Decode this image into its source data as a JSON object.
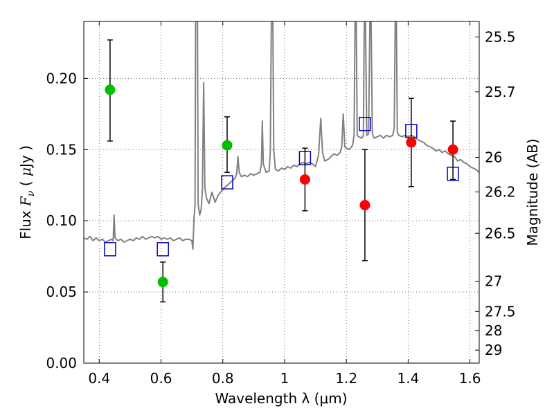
{
  "chart_data": {
    "type": "scatter",
    "xlabel": "Wavelength  λ (μm)",
    "ylabel": "Flux  F_ν  ( μJy )",
    "ylabel_right": "Magnitude (AB)",
    "xlim": [
      0.35,
      1.63
    ],
    "ylim": [
      0.0,
      0.24
    ],
    "grid": true,
    "x_ticks": [
      0.4,
      0.6,
      0.8,
      1.0,
      1.2,
      1.4,
      1.6
    ],
    "x_tick_labels": [
      "0.4",
      "0.6",
      "0.8",
      "1",
      "1.2",
      "1.4",
      "1.6"
    ],
    "y_ticks": [
      0.0,
      0.05,
      0.1,
      0.15,
      0.2
    ],
    "y_tick_labels": [
      "0.00",
      "0.05",
      "0.10",
      "0.15",
      "0.20"
    ],
    "magnitude_ticks": [
      25.5,
      25.7,
      26,
      26.2,
      26.5,
      27,
      27.5,
      28,
      29
    ],
    "magnitude_tick_labels": [
      "25.5",
      "25.7",
      "26",
      "26.2",
      "26.5",
      "27",
      "27.5",
      "28",
      "29"
    ],
    "colors": {
      "sed": "#808080",
      "green": "#00bf00",
      "red": "#ff0000",
      "model": "#0000cc",
      "errorbar": "#000000",
      "grid": "#555555"
    },
    "series": [
      {
        "marker": "circle",
        "color": "#00bf00",
        "points": [
          {
            "x": 0.435,
            "y": 0.192,
            "err": [
              0.156,
              0.227
            ]
          },
          {
            "x": 0.606,
            "y": 0.057,
            "err": [
              0.043,
              0.071
            ]
          },
          {
            "x": 0.814,
            "y": 0.153,
            "err": [
              0.134,
              0.173
            ]
          }
        ]
      },
      {
        "marker": "circle",
        "color": "#ff0000",
        "points": [
          {
            "x": 1.066,
            "y": 0.129,
            "err": [
              0.107,
              0.151
            ]
          },
          {
            "x": 1.26,
            "y": 0.111,
            "err": [
              0.072,
              0.15
            ]
          },
          {
            "x": 1.41,
            "y": 0.155,
            "err": [
              0.124,
              0.186
            ]
          },
          {
            "x": 1.545,
            "y": 0.15,
            "err": [
              0.129,
              0.17
            ]
          }
        ]
      },
      {
        "marker": "open-square",
        "color": "#0000cc",
        "points": [
          {
            "x": 0.435,
            "y": 0.08
          },
          {
            "x": 0.606,
            "y": 0.08
          },
          {
            "x": 0.814,
            "y": 0.127
          },
          {
            "x": 1.066,
            "y": 0.144
          },
          {
            "x": 1.26,
            "y": 0.168
          },
          {
            "x": 1.41,
            "y": 0.163
          },
          {
            "x": 1.545,
            "y": 0.133
          }
        ]
      },
      {
        "marker": "line",
        "color": "#808080",
        "points": [
          [
            0.35,
            0.088
          ],
          [
            0.36,
            0.087
          ],
          [
            0.37,
            0.089
          ],
          [
            0.38,
            0.086
          ],
          [
            0.39,
            0.088
          ],
          [
            0.4,
            0.086
          ],
          [
            0.41,
            0.087
          ],
          [
            0.42,
            0.085
          ],
          [
            0.43,
            0.086
          ],
          [
            0.44,
            0.087
          ],
          [
            0.445,
            0.086
          ],
          [
            0.448,
            0.104
          ],
          [
            0.451,
            0.088
          ],
          [
            0.46,
            0.086
          ],
          [
            0.47,
            0.087
          ],
          [
            0.48,
            0.085
          ],
          [
            0.49,
            0.086
          ],
          [
            0.5,
            0.087
          ],
          [
            0.51,
            0.086
          ],
          [
            0.52,
            0.088
          ],
          [
            0.53,
            0.087
          ],
          [
            0.54,
            0.089
          ],
          [
            0.55,
            0.087
          ],
          [
            0.56,
            0.088
          ],
          [
            0.57,
            0.089
          ],
          [
            0.58,
            0.088
          ],
          [
            0.59,
            0.089
          ],
          [
            0.6,
            0.087
          ],
          [
            0.61,
            0.088
          ],
          [
            0.62,
            0.087
          ],
          [
            0.63,
            0.088
          ],
          [
            0.64,
            0.086
          ],
          [
            0.65,
            0.087
          ],
          [
            0.66,
            0.088
          ],
          [
            0.67,
            0.086
          ],
          [
            0.68,
            0.087
          ],
          [
            0.69,
            0.087
          ],
          [
            0.7,
            0.086
          ],
          [
            0.703,
            0.08
          ],
          [
            0.707,
            0.103
          ],
          [
            0.71,
            0.11
          ],
          [
            0.712,
            0.24
          ],
          [
            0.718,
            0.24
          ],
          [
            0.72,
            0.112
          ],
          [
            0.725,
            0.104
          ],
          [
            0.73,
            0.108
          ],
          [
            0.734,
            0.122
          ],
          [
            0.738,
            0.197
          ],
          [
            0.742,
            0.123
          ],
          [
            0.747,
            0.116
          ],
          [
            0.755,
            0.112
          ],
          [
            0.765,
            0.12
          ],
          [
            0.775,
            0.113
          ],
          [
            0.785,
            0.118
          ],
          [
            0.8,
            0.122
          ],
          [
            0.81,
            0.124
          ],
          [
            0.82,
            0.126
          ],
          [
            0.83,
            0.128
          ],
          [
            0.84,
            0.13
          ],
          [
            0.845,
            0.133
          ],
          [
            0.849,
            0.145
          ],
          [
            0.853,
            0.134
          ],
          [
            0.86,
            0.131
          ],
          [
            0.87,
            0.132
          ],
          [
            0.88,
            0.131
          ],
          [
            0.89,
            0.133
          ],
          [
            0.9,
            0.132
          ],
          [
            0.91,
            0.133
          ],
          [
            0.92,
            0.134
          ],
          [
            0.925,
            0.14
          ],
          [
            0.928,
            0.17
          ],
          [
            0.931,
            0.14
          ],
          [
            0.94,
            0.134
          ],
          [
            0.95,
            0.135
          ],
          [
            0.954,
            0.15
          ],
          [
            0.957,
            0.24
          ],
          [
            0.962,
            0.24
          ],
          [
            0.965,
            0.15
          ],
          [
            0.97,
            0.136
          ],
          [
            0.98,
            0.135
          ],
          [
            0.99,
            0.137
          ],
          [
            1.0,
            0.136
          ],
          [
            1.01,
            0.138
          ],
          [
            1.02,
            0.137
          ],
          [
            1.03,
            0.139
          ],
          [
            1.04,
            0.138
          ],
          [
            1.05,
            0.14
          ],
          [
            1.06,
            0.141
          ],
          [
            1.07,
            0.14
          ],
          [
            1.08,
            0.141
          ],
          [
            1.09,
            0.14
          ],
          [
            1.1,
            0.138
          ],
          [
            1.11,
            0.146
          ],
          [
            1.117,
            0.172
          ],
          [
            1.123,
            0.148
          ],
          [
            1.13,
            0.142
          ],
          [
            1.14,
            0.143
          ],
          [
            1.15,
            0.145
          ],
          [
            1.16,
            0.147
          ],
          [
            1.17,
            0.146
          ],
          [
            1.18,
            0.148
          ],
          [
            1.185,
            0.152
          ],
          [
            1.19,
            0.175
          ],
          [
            1.195,
            0.152
          ],
          [
            1.2,
            0.151
          ],
          [
            1.21,
            0.15
          ],
          [
            1.22,
            0.153
          ],
          [
            1.225,
            0.16
          ],
          [
            1.228,
            0.24
          ],
          [
            1.232,
            0.24
          ],
          [
            1.235,
            0.16
          ],
          [
            1.24,
            0.159
          ],
          [
            1.25,
            0.158
          ],
          [
            1.255,
            0.16
          ],
          [
            1.258,
            0.24
          ],
          [
            1.262,
            0.24
          ],
          [
            1.266,
            0.16
          ],
          [
            1.272,
            0.161
          ],
          [
            1.276,
            0.24
          ],
          [
            1.28,
            0.24
          ],
          [
            1.284,
            0.161
          ],
          [
            1.29,
            0.158
          ],
          [
            1.3,
            0.159
          ],
          [
            1.31,
            0.16
          ],
          [
            1.32,
            0.158
          ],
          [
            1.33,
            0.16
          ],
          [
            1.34,
            0.159
          ],
          [
            1.35,
            0.16
          ],
          [
            1.355,
            0.165
          ],
          [
            1.358,
            0.24
          ],
          [
            1.362,
            0.24
          ],
          [
            1.365,
            0.162
          ],
          [
            1.37,
            0.16
          ],
          [
            1.38,
            0.159
          ],
          [
            1.39,
            0.16
          ],
          [
            1.4,
            0.159
          ],
          [
            1.41,
            0.16
          ],
          [
            1.42,
            0.159
          ],
          [
            1.43,
            0.157
          ],
          [
            1.44,
            0.156
          ],
          [
            1.45,
            0.155
          ],
          [
            1.46,
            0.153
          ],
          [
            1.47,
            0.152
          ],
          [
            1.48,
            0.151
          ],
          [
            1.49,
            0.149
          ],
          [
            1.5,
            0.15
          ],
          [
            1.51,
            0.148
          ],
          [
            1.52,
            0.149
          ],
          [
            1.53,
            0.147
          ],
          [
            1.54,
            0.146
          ],
          [
            1.55,
            0.145
          ],
          [
            1.56,
            0.142
          ],
          [
            1.57,
            0.143
          ],
          [
            1.58,
            0.141
          ],
          [
            1.59,
            0.14
          ],
          [
            1.6,
            0.138
          ],
          [
            1.61,
            0.137
          ],
          [
            1.62,
            0.136
          ],
          [
            1.63,
            0.134
          ]
        ]
      }
    ]
  }
}
